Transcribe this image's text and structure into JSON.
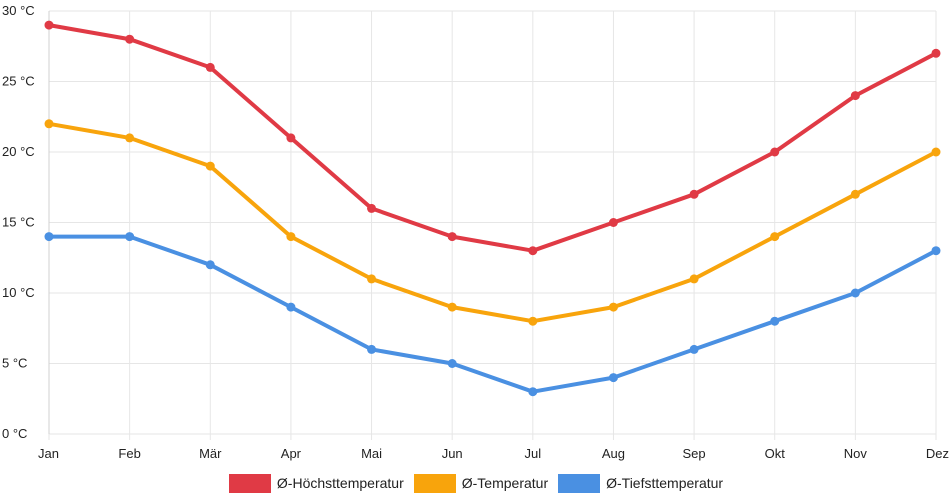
{
  "chart_data": {
    "type": "line",
    "title": "",
    "xlabel": "",
    "ylabel": "",
    "categories": [
      "Jan",
      "Feb",
      "Mär",
      "Apr",
      "Mai",
      "Jun",
      "Jul",
      "Aug",
      "Sep",
      "Okt",
      "Nov",
      "Dez"
    ],
    "ylim": [
      0,
      30
    ],
    "y_ticks": [
      0,
      5,
      10,
      15,
      20,
      25,
      30
    ],
    "y_tick_labels": [
      "0 °C",
      "5 °C",
      "10 °C",
      "15 °C",
      "20 °C",
      "25 °C",
      "30 °C"
    ],
    "grid": true,
    "legend_position": "bottom",
    "series": [
      {
        "name": "Ø-Höchsttemperatur",
        "color": "#e03a45",
        "values": [
          29,
          28,
          26,
          21,
          16,
          14,
          13,
          15,
          17,
          20,
          24,
          27
        ]
      },
      {
        "name": "Ø-Temperatur",
        "color": "#f8a40c",
        "values": [
          22,
          21,
          19,
          14,
          11,
          9,
          8,
          9,
          11,
          14,
          17,
          20
        ]
      },
      {
        "name": "Ø-Tiefsttemperatur",
        "color": "#4a90e2",
        "values": [
          14,
          14,
          12,
          9,
          6,
          5,
          3,
          4,
          6,
          8,
          10,
          13
        ]
      }
    ]
  }
}
